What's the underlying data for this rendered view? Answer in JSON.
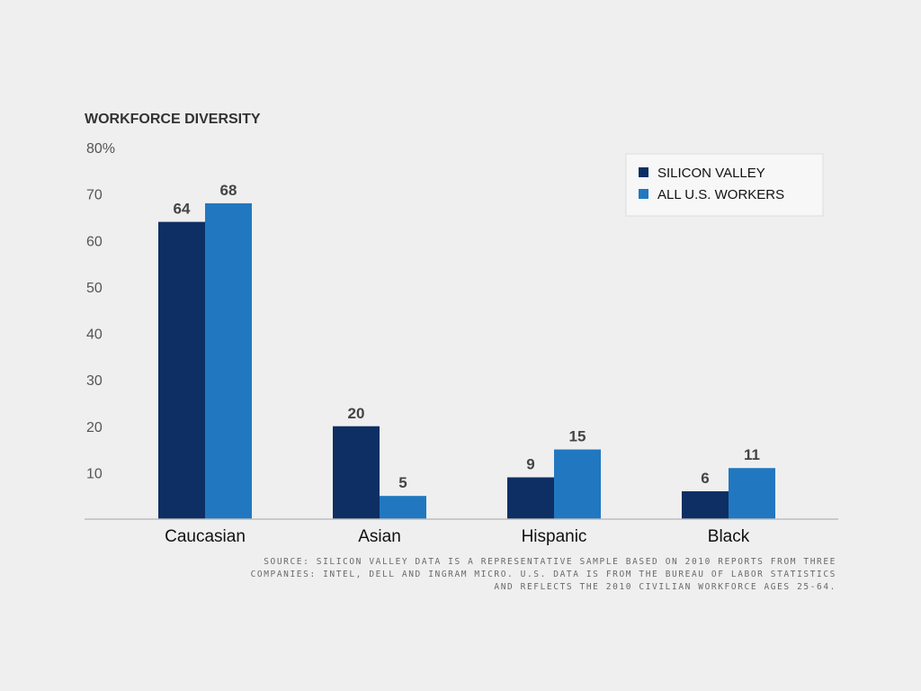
{
  "chart_data": {
    "type": "bar",
    "title": "WORKFORCE DIVERSITY",
    "xlabel": "",
    "ylabel": "",
    "categories": [
      "Caucasian",
      "Asian",
      "Hispanic",
      "Black"
    ],
    "series": [
      {
        "name": "SILICON VALLEY",
        "color": "#0e2f63",
        "values": [
          64,
          20,
          9,
          6
        ]
      },
      {
        "name": "ALL U.S. WORKERS",
        "color": "#2178c0",
        "values": [
          68,
          5,
          15,
          11
        ]
      }
    ],
    "yticks": [
      {
        "value": 80,
        "label": "80%"
      },
      {
        "value": 70,
        "label": "70"
      },
      {
        "value": 60,
        "label": "60"
      },
      {
        "value": 50,
        "label": "50"
      },
      {
        "value": 40,
        "label": "40"
      },
      {
        "value": 30,
        "label": "30"
      },
      {
        "value": 20,
        "label": "20"
      },
      {
        "value": 10,
        "label": "10"
      }
    ],
    "ylim": [
      0,
      80
    ],
    "grid": false,
    "legend_position": "top-right",
    "data_labels": true
  },
  "source_note": [
    "SOURCE: SILICON VALLEY DATA IS A REPRESENTATIVE SAMPLE BASED ON 2010 REPORTS FROM THREE",
    "COMPANIES: INTEL, DELL AND INGRAM MICRO. U.S. DATA IS FROM THE BUREAU OF LABOR STATISTICS",
    "AND REFLECTS THE 2010 CIVILIAN WORKFORCE AGES 25-64."
  ],
  "colors": {
    "background": "#efefef",
    "axis": "#bdbdbd",
    "legend_bg": "#f7f7f7"
  }
}
